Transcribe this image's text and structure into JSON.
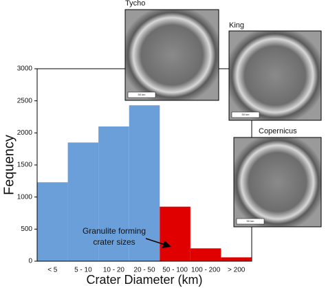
{
  "chart_data": {
    "type": "bar",
    "categories": [
      "< 5",
      "5 - 10",
      "10 - 20",
      "20 - 50",
      "50 - 100",
      "100 - 200",
      "> 200"
    ],
    "values": [
      1230,
      1850,
      2100,
      2430,
      850,
      200,
      60
    ],
    "colors": [
      "#6a9fd9",
      "#6a9fd9",
      "#6a9fd9",
      "#6a9fd9",
      "#e10000",
      "#e10000",
      "#e10000"
    ],
    "ylim": [
      0,
      3000
    ],
    "yticks": [
      0,
      500,
      1000,
      1500,
      2000,
      2500,
      3000
    ],
    "x_label": "Crater Diameter (km)",
    "y_label": "Fequency",
    "annotation": [
      "Granulite forming",
      "crater sizes"
    ],
    "images": [
      {
        "label": "Tycho",
        "scale": "50 km"
      },
      {
        "label": "King",
        "scale": "50 km"
      },
      {
        "label": "Copernicus",
        "scale": "50 km"
      }
    ]
  }
}
